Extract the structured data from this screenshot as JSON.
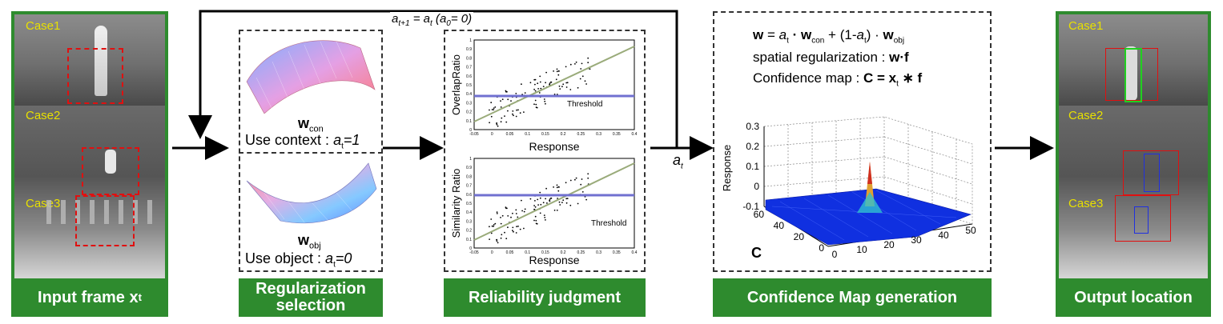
{
  "feedback": {
    "a_sym": "a",
    "t1_sub": "t+1",
    "eq": " = ",
    "t_sub": "t",
    "init_open": " (",
    "zero_sub": "0",
    "init_close": "= 0)"
  },
  "input_panel": {
    "case1": "Case1",
    "case2": "Case2",
    "case3": "Case3",
    "label_main": "Input frame x",
    "label_sub": "t"
  },
  "regularization": {
    "wcon_w": "w",
    "wcon_sub": "con",
    "use_context": "Use context : ",
    "a_sym": "a",
    "t_sub": "t",
    "context_val": "=1",
    "wobj_w": "w",
    "wobj_sub": "obj",
    "use_object": "Use object : ",
    "object_val": "=0",
    "label_line1": "Regularization",
    "label_line2": "selection"
  },
  "reliability": {
    "label": "Reliability judgment",
    "top_plot": {
      "ylabel": "OverlapRatio",
      "xlabel": "Response",
      "threshold_label": "Threshold",
      "xticks": [
        "-0.05",
        "0",
        "0.05",
        "0.1",
        "0.15",
        "0.2",
        "0.25",
        "0.3",
        "0.35",
        "0.4"
      ],
      "yticks": [
        "0",
        "0.1",
        "0.2",
        "0.3",
        "0.4",
        "0.5",
        "0.6",
        "0.7",
        "0.8",
        "0.9",
        "1"
      ]
    },
    "bottom_plot": {
      "ylabel": "Similarity Ratio",
      "xlabel": "Response",
      "threshold_label": "Threshold",
      "xticks": [
        "-0.05",
        "0",
        "0.05",
        "0.1",
        "0.15",
        "0.2",
        "0.25",
        "0.3",
        "0.35",
        "0.4"
      ],
      "yticks": [
        "0",
        "0.1",
        "0.2",
        "0.3",
        "0.4",
        "0.5",
        "0.6",
        "0.7",
        "0.8",
        "0.9",
        "1"
      ]
    }
  },
  "arrow_label": {
    "a_sym": "a",
    "t_sub": "t"
  },
  "confidence": {
    "f1_w": "w",
    "f1_eq": " = ",
    "f1_a": "a",
    "f1_t": "t",
    "f1_dot": " · ",
    "f1_w2": "w",
    "f1_con": "con",
    "f1_plus": " + (1-",
    "f1_a2": "a",
    "f1_t2": "t",
    "f1_close": ") · ",
    "f1_w3": "w",
    "f1_obj": "obj",
    "f2_text": "spatial regularization : ",
    "f2_expr": "w·f",
    "f3_text": "Confidence map : ",
    "f3_expr": "C = x",
    "f3_t": "t",
    "f3_rest": " ∗ f",
    "plot_ylabel": "Response",
    "z_ticks": [
      "0.3",
      "0.2",
      "0.1",
      "0",
      "-0.1"
    ],
    "y_ticks": [
      "60",
      "40",
      "20",
      "0"
    ],
    "x_ticks": [
      "0",
      "10",
      "20",
      "30",
      "40",
      "50"
    ],
    "c_label": "C",
    "label": "Confidence Map generation"
  },
  "output_panel": {
    "case1": "Case1",
    "case2": "Case2",
    "case3": "Case3",
    "label": "Output location"
  },
  "colors": {
    "green": "#2e8b2e",
    "case_text": "#e8e000",
    "threshold_line": "#7070d0",
    "fit_line": "#9aab7a",
    "surface": "#1030e0"
  }
}
